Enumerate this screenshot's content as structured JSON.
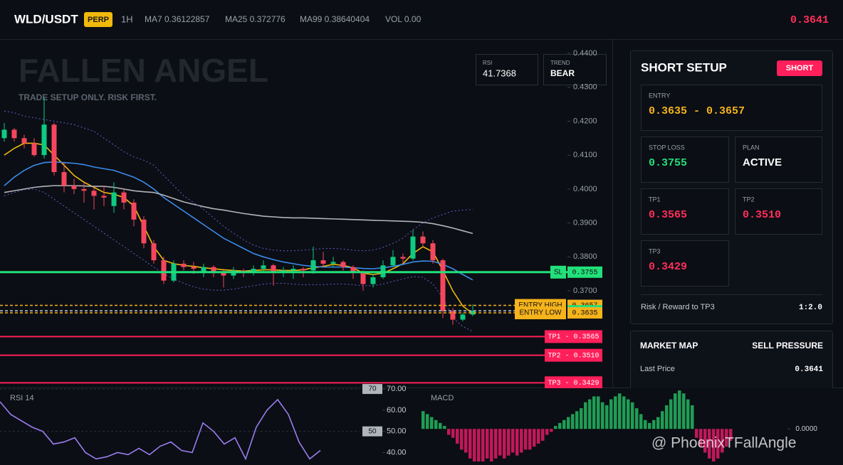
{
  "header": {
    "symbol": "WLD/USDT",
    "badge": "PERP",
    "interval": "1H",
    "indicators": [
      "MA7 0.36122857",
      "MA25 0.372776",
      "MA99 0.38640404",
      "VOL 0.00"
    ],
    "price": "0.3641"
  },
  "chart_data": [
    {
      "type": "candlestick",
      "title": "FALLEN ANGEL",
      "subtitle": "TRADE SETUP ONLY. RISK FIRST.",
      "ohlc": [
        [
          0.415,
          0.4195,
          0.414,
          0.4175
        ],
        [
          0.4175,
          0.418,
          0.414,
          0.415
        ],
        [
          0.415,
          0.416,
          0.412,
          0.4135
        ],
        [
          0.4135,
          0.415,
          0.4095,
          0.41
        ],
        [
          0.41,
          0.427,
          0.409,
          0.419
        ],
        [
          0.419,
          0.4195,
          0.404,
          0.405
        ],
        [
          0.405,
          0.408,
          0.399,
          0.401
        ],
        [
          0.401,
          0.403,
          0.3985,
          0.4
        ],
        [
          0.4,
          0.402,
          0.396,
          0.3995
        ],
        [
          0.3995,
          0.4005,
          0.394,
          0.398
        ],
        [
          0.398,
          0.401,
          0.395,
          0.3975
        ],
        [
          0.395,
          0.402,
          0.393,
          0.399
        ],
        [
          0.399,
          0.4,
          0.394,
          0.396
        ],
        [
          0.396,
          0.397,
          0.389,
          0.391
        ],
        [
          0.391,
          0.392,
          0.3825,
          0.384
        ],
        [
          0.384,
          0.385,
          0.378,
          0.379
        ],
        [
          0.379,
          0.38,
          0.372,
          0.373
        ],
        [
          0.373,
          0.379,
          0.3725,
          0.378
        ],
        [
          0.378,
          0.379,
          0.376,
          0.377
        ],
        [
          0.377,
          0.3785,
          0.375,
          0.3765
        ],
        [
          0.3755,
          0.378,
          0.374,
          0.377
        ],
        [
          0.377,
          0.3775,
          0.374,
          0.3755
        ],
        [
          0.3755,
          0.376,
          0.371,
          0.3745
        ],
        [
          0.3745,
          0.377,
          0.3735,
          0.376
        ],
        [
          0.376,
          0.3765,
          0.374,
          0.3755
        ],
        [
          0.3755,
          0.3775,
          0.3745,
          0.3765
        ],
        [
          0.3765,
          0.379,
          0.3755,
          0.3775
        ],
        [
          0.3775,
          0.378,
          0.3715,
          0.3755
        ],
        [
          0.3755,
          0.377,
          0.374,
          0.376
        ],
        [
          0.376,
          0.3775,
          0.3735,
          0.3765
        ],
        [
          0.3765,
          0.377,
          0.374,
          0.376
        ],
        [
          0.376,
          0.383,
          0.375,
          0.379
        ],
        [
          0.379,
          0.3815,
          0.377,
          0.378
        ],
        [
          0.378,
          0.38,
          0.377,
          0.3785
        ],
        [
          0.3785,
          0.379,
          0.376,
          0.377
        ],
        [
          0.377,
          0.3775,
          0.3735,
          0.3755
        ],
        [
          0.3755,
          0.376,
          0.37,
          0.372
        ],
        [
          0.372,
          0.375,
          0.371,
          0.374
        ],
        [
          0.374,
          0.379,
          0.3735,
          0.3775
        ],
        [
          0.3775,
          0.382,
          0.377,
          0.38
        ],
        [
          0.38,
          0.381,
          0.378,
          0.3795
        ],
        [
          0.3795,
          0.388,
          0.379,
          0.386
        ],
        [
          0.386,
          0.3875,
          0.383,
          0.384
        ],
        [
          0.384,
          0.385,
          0.378,
          0.379
        ],
        [
          0.379,
          0.3795,
          0.362,
          0.364
        ],
        [
          0.364,
          0.365,
          0.36,
          0.3615
        ],
        [
          0.3615,
          0.3635,
          0.361,
          0.363
        ],
        [
          0.363,
          0.366,
          0.3625,
          0.3641
        ]
      ],
      "up_color": "#0ecb81",
      "down_color": "#f6465d",
      "lines": [
        {
          "color": "#f0b90b",
          "style": "solid",
          "values": [
            0.41,
            0.412,
            0.4135,
            0.4135,
            0.413,
            0.41,
            0.407,
            0.404,
            0.402,
            0.4005,
            0.399,
            0.3985,
            0.3975,
            0.395,
            0.389,
            0.383,
            0.379,
            0.378,
            0.3775,
            0.3772,
            0.3768,
            0.3765,
            0.3762,
            0.376,
            0.3758,
            0.376,
            0.3762,
            0.3762,
            0.376,
            0.376,
            0.3762,
            0.3768,
            0.3772,
            0.3778,
            0.3775,
            0.3768,
            0.3752,
            0.3748,
            0.3752,
            0.3765,
            0.378,
            0.381,
            0.383,
            0.3815,
            0.376,
            0.37,
            0.3655,
            0.3633
          ]
        },
        {
          "color": "#3b8beb",
          "style": "solid",
          "values": [
            0.401,
            0.4035,
            0.4055,
            0.407,
            0.4078,
            0.408,
            0.4078,
            0.4076,
            0.4072,
            0.4065,
            0.406,
            0.4055,
            0.4045,
            0.4035,
            0.402,
            0.4,
            0.3975,
            0.3955,
            0.3935,
            0.3915,
            0.3895,
            0.3875,
            0.3855,
            0.384,
            0.3825,
            0.381,
            0.38,
            0.3792,
            0.3785,
            0.378,
            0.3775,
            0.3772,
            0.377,
            0.377,
            0.377,
            0.3768,
            0.3766,
            0.3765,
            0.3768,
            0.3772,
            0.3778,
            0.3785,
            0.3788,
            0.3787,
            0.3778,
            0.3765,
            0.3748,
            0.3732
          ]
        },
        {
          "color": "#b4b4b8",
          "style": "solid",
          "values": [
            0.399,
            0.3995,
            0.4,
            0.4005,
            0.4008,
            0.401,
            0.401,
            0.401,
            0.4009,
            0.4008,
            0.4008,
            0.4005,
            0.4,
            0.3995,
            0.3992,
            0.399,
            0.3982,
            0.3972,
            0.3962,
            0.3955,
            0.3948,
            0.3942,
            0.3938,
            0.3933,
            0.3928,
            0.3924,
            0.392,
            0.3918,
            0.3916,
            0.3915,
            0.3915,
            0.3914,
            0.3913,
            0.3912,
            0.3911,
            0.391,
            0.3909,
            0.3908,
            0.3907,
            0.3906,
            0.3905,
            0.3904,
            0.3902,
            0.3898,
            0.3892,
            0.3885,
            0.3877,
            0.3869
          ]
        },
        {
          "color": "#6a5acd",
          "style": "dotted",
          "values": [
            0.423,
            0.4225,
            0.4215,
            0.421,
            0.4205,
            0.42,
            0.4195,
            0.419,
            0.418,
            0.417,
            0.415,
            0.413,
            0.411,
            0.4095,
            0.4085,
            0.407,
            0.404,
            0.401,
            0.398,
            0.396,
            0.394,
            0.3915,
            0.389,
            0.387,
            0.385,
            0.3835,
            0.3825,
            0.382,
            0.3818,
            0.3818,
            0.382,
            0.3822,
            0.3825,
            0.3825,
            0.3823,
            0.382,
            0.3818,
            0.382,
            0.3828,
            0.384,
            0.3855,
            0.388,
            0.39,
            0.3915,
            0.3925,
            0.3935,
            0.3938,
            0.394
          ]
        },
        {
          "color": "#6a5acd",
          "style": "dotted",
          "values": [
            0.398,
            0.399,
            0.3998,
            0.4,
            0.399,
            0.397,
            0.395,
            0.393,
            0.391,
            0.389,
            0.387,
            0.385,
            0.383,
            0.381,
            0.379,
            0.377,
            0.375,
            0.3735,
            0.3722,
            0.3712,
            0.3705,
            0.3702,
            0.3702,
            0.3705,
            0.371,
            0.3715,
            0.372,
            0.3722,
            0.3722,
            0.372,
            0.3718,
            0.3718,
            0.3718,
            0.372,
            0.372,
            0.3718,
            0.3715,
            0.3715,
            0.372,
            0.3728,
            0.3735,
            0.3742,
            0.374,
            0.372,
            0.368,
            0.362,
            0.3595,
            0.358
          ]
        }
      ],
      "ylim": [
        0.3415,
        0.4442
      ],
      "yticks": [
        {
          "value": 0.44,
          "label": "0.4400"
        },
        {
          "value": 0.43,
          "label": "0.4300"
        },
        {
          "value": 0.42,
          "label": "0.4200"
        },
        {
          "value": 0.41,
          "label": "0.4100"
        },
        {
          "value": 0.4,
          "label": "0.4000"
        },
        {
          "value": 0.39,
          "label": "0.3900"
        },
        {
          "value": 0.38,
          "label": "0.3800"
        },
        {
          "value": 0.37,
          "label": "0.3700"
        }
      ],
      "levels": [
        {
          "name": "SL",
          "value": 0.3755,
          "value_label": "0.3755",
          "color": "#22e07a",
          "style": "solid"
        },
        {
          "name": "ENTRY HIGH",
          "value": 0.3657,
          "value_label": "0.3657",
          "color": "#f5b31c",
          "style": "dashed"
        },
        {
          "value": 0.3641,
          "value_label": "0.3641",
          "color": "#22e07a",
          "style": "dashed"
        },
        {
          "name": "ENTRY LOW",
          "value": 0.3635,
          "value_label": "0.3635",
          "color": "#f5b31c",
          "style": "dashed"
        },
        {
          "label": "TP1 - 0.3565",
          "value": 0.3565,
          "color": "#ff1f5a",
          "style": "solid"
        },
        {
          "label": "TP2 - 0.3510",
          "value": 0.351,
          "color": "#ff1f5a",
          "style": "solid"
        },
        {
          "label": "TP3 - 0.3429",
          "value": 0.3429,
          "color": "#ff1f5a",
          "style": "solid"
        }
      ],
      "stats": [
        {
          "label": "RSI",
          "value": 41.7368
        },
        {
          "label": "TREND",
          "value": "BEAR"
        }
      ]
    },
    {
      "type": "line",
      "title": "RSI 14",
      "color": "#9b7cf0",
      "values": [
        64,
        58,
        55,
        52,
        50,
        44,
        45,
        47,
        40,
        37,
        38,
        40,
        39,
        42,
        39,
        43,
        45,
        41,
        40,
        54,
        50,
        44,
        47,
        37,
        52,
        60,
        65,
        58,
        45,
        37,
        41
      ],
      "ylim": [
        35.8,
        70.7
      ],
      "yticks": [
        {
          "value": 70,
          "label": "70.00"
        },
        {
          "value": 60,
          "label": "60.00"
        },
        {
          "value": 50,
          "label": "50.00"
        },
        {
          "value": 40,
          "label": "40.00"
        }
      ],
      "levels": [
        70,
        50
      ]
    },
    {
      "type": "bar",
      "title": "MACD",
      "up_color": "#1f9d55",
      "down_color": "#c2185b",
      "values": [
        0.0006,
        0.0005,
        0.0004,
        0.0003,
        0.0002,
        0.0001,
        -0.0002,
        -0.0003,
        -0.0005,
        -0.0007,
        -0.0008,
        -0.001,
        -0.0011,
        -0.0011,
        -0.0011,
        -0.001,
        -0.0011,
        -0.001,
        -0.0009,
        -0.001,
        -0.0009,
        -0.0008,
        -0.0009,
        -0.0008,
        -0.0007,
        -0.0007,
        -0.0006,
        -0.0005,
        -0.0004,
        -0.0002,
        -0.0001,
        0.0001,
        0.0002,
        0.0003,
        0.0004,
        0.0005,
        0.0006,
        0.0007,
        0.0009,
        0.001,
        0.0011,
        0.0011,
        0.0009,
        0.0008,
        0.001,
        0.0011,
        0.0012,
        0.0011,
        0.001,
        0.0009,
        0.0007,
        0.0005,
        0.0003,
        0.0002,
        0.0003,
        0.0004,
        0.0006,
        0.0008,
        0.001,
        0.0012,
        0.0013,
        0.0012,
        0.001,
        0.0008,
        -0.0003,
        -0.0006,
        -0.0008,
        -0.001,
        -0.0011,
        -0.001,
        -0.0008,
        -0.0006,
        -0.0004
      ],
      "ylim": [
        -0.0011,
        0.0014
      ],
      "yticks": [
        {
          "value": 0,
          "label": "0.0000"
        }
      ]
    }
  ],
  "setup": {
    "title": "SHORT SETUP",
    "badge": "SHORT",
    "entry": {
      "label": "ENTRY",
      "value": "0.3635 - 0.3657"
    },
    "stop_loss": {
      "label": "STOP LOSS",
      "value": "0.3755"
    },
    "plan": {
      "label": "PLAN",
      "value": "ACTIVE"
    },
    "tp1": {
      "label": "TP1",
      "value": "0.3565"
    },
    "tp2": {
      "label": "TP2",
      "value": "0.3510"
    },
    "tp3": {
      "label": "TP3",
      "value": "0.3429"
    },
    "risk_reward": {
      "label": "Risk / Reward to TP3",
      "value": "1:2.0"
    }
  },
  "market_map": {
    "title": "MARKET MAP",
    "status": "SELL PRESSURE",
    "rows": [
      {
        "label": "Last Price",
        "value": "0.3641"
      }
    ]
  },
  "handle": "@ PhoenixTFallAngle"
}
